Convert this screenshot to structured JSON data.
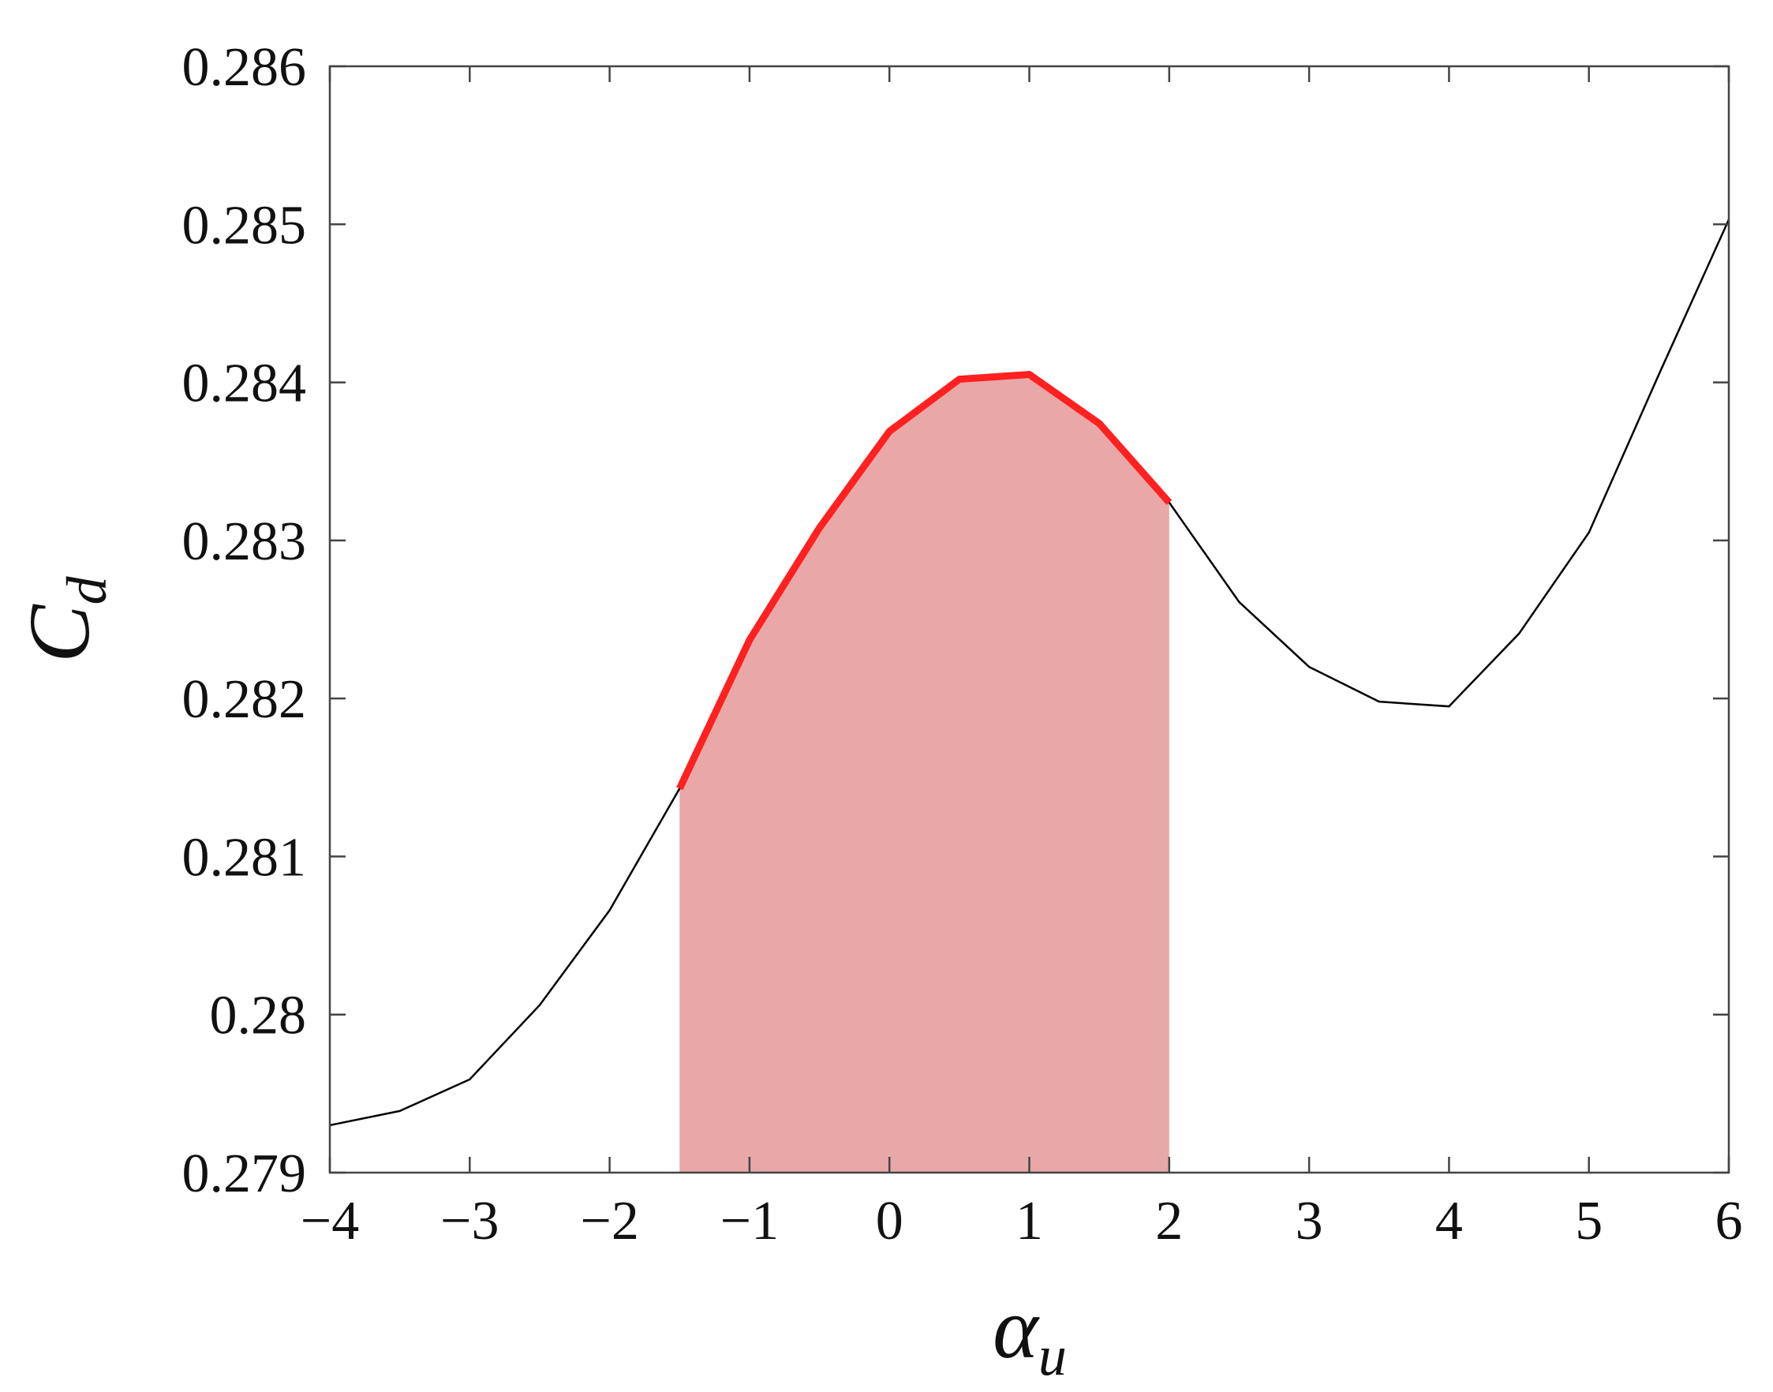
{
  "chart_data": {
    "type": "line",
    "ylabel": {
      "symbol": "C",
      "subscript": "d"
    },
    "xlabel": {
      "symbol": "α",
      "subscript": "u"
    },
    "x": [
      -4,
      -3.5,
      -3,
      -2.5,
      -2,
      -1.5,
      -1,
      -0.5,
      0,
      0.5,
      1,
      1.5,
      2,
      2.5,
      3,
      3.5,
      4,
      4.5,
      5,
      5.5,
      6
    ],
    "values": [
      0.2793,
      0.27939,
      0.27959,
      0.28006,
      0.28066,
      0.28143,
      0.28237,
      0.28308,
      0.28369,
      0.28402,
      0.28405,
      0.28374,
      0.28324,
      0.28261,
      0.2822,
      0.28198,
      0.28195,
      0.28241,
      0.28305,
      0.28405,
      0.28503
    ],
    "color": "#000000",
    "highlight_range": [
      -1.5,
      2
    ],
    "highlight_line_color": "#ff2020",
    "highlight_fill_color": "#e8a8a8",
    "xlim": [
      -4,
      6
    ],
    "ylim": [
      0.279,
      0.286
    ],
    "xticks": [
      {
        "value": -4,
        "label": "−4"
      },
      {
        "value": -3,
        "label": "−3"
      },
      {
        "value": -2,
        "label": "−2"
      },
      {
        "value": -1,
        "label": "−1"
      },
      0,
      1,
      2,
      3,
      4,
      5,
      6
    ],
    "yticks": [
      0.279,
      0.28,
      0.281,
      0.282,
      0.283,
      0.284,
      0.285,
      0.286
    ],
    "grid": false
  }
}
